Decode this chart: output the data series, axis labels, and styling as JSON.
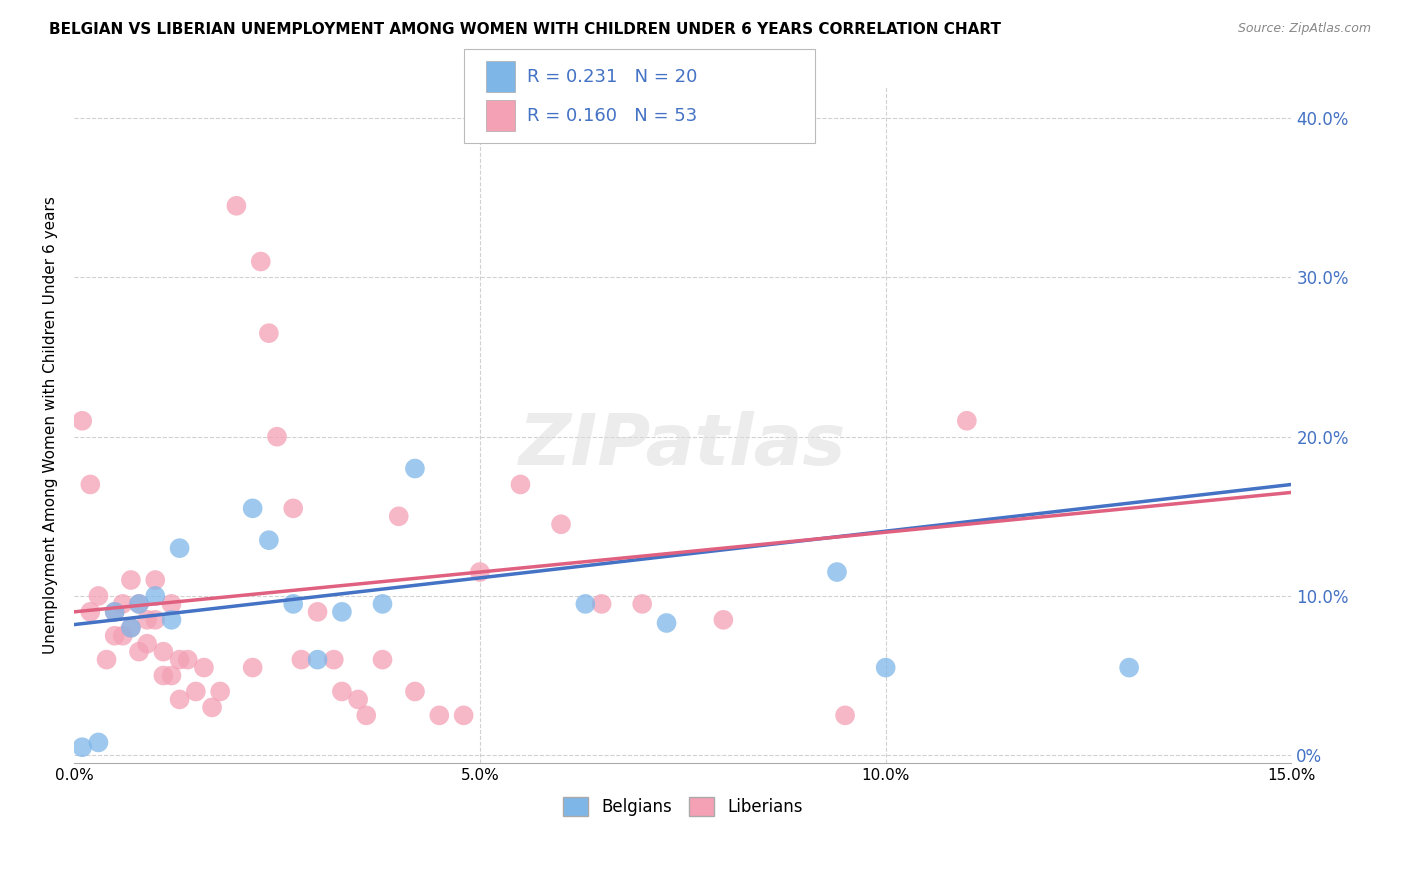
{
  "title": "BELGIAN VS LIBERIAN UNEMPLOYMENT AMONG WOMEN WITH CHILDREN UNDER 6 YEARS CORRELATION CHART",
  "source": "Source: ZipAtlas.com",
  "ylabel": "Unemployment Among Women with Children Under 6 years",
  "xlim": [
    0.0,
    0.15
  ],
  "ylim": [
    -0.005,
    0.42
  ],
  "xticks": [
    0.0,
    0.05,
    0.1,
    0.15
  ],
  "yticks": [
    0.0,
    0.1,
    0.2,
    0.3,
    0.4
  ],
  "ytick_labels_right": [
    "0%",
    "10.0%",
    "20.0%",
    "30.0%",
    "40.0%"
  ],
  "xtick_labels": [
    "0.0%",
    "5.0%",
    "10.0%",
    "15.0%"
  ],
  "belgian_R": "0.231",
  "belgian_N": "20",
  "liberian_R": "0.160",
  "liberian_N": "53",
  "belgian_color": "#7EB6E8",
  "liberian_color": "#F4A0B5",
  "belgian_line_color": "#4472C4",
  "liberian_line_color": "#E06080",
  "watermark": "ZIPatlas",
  "belgians_x": [
    0.001,
    0.003,
    0.005,
    0.007,
    0.008,
    0.01,
    0.012,
    0.013,
    0.022,
    0.024,
    0.027,
    0.03,
    0.033,
    0.038,
    0.042,
    0.063,
    0.073,
    0.094,
    0.1,
    0.13
  ],
  "belgians_y": [
    0.005,
    0.008,
    0.09,
    0.08,
    0.095,
    0.1,
    0.085,
    0.13,
    0.155,
    0.135,
    0.095,
    0.06,
    0.09,
    0.095,
    0.18,
    0.095,
    0.083,
    0.115,
    0.055,
    0.055
  ],
  "liberians_x": [
    0.001,
    0.002,
    0.002,
    0.003,
    0.004,
    0.005,
    0.005,
    0.006,
    0.006,
    0.007,
    0.007,
    0.008,
    0.008,
    0.009,
    0.009,
    0.01,
    0.01,
    0.011,
    0.011,
    0.012,
    0.012,
    0.013,
    0.013,
    0.014,
    0.015,
    0.016,
    0.017,
    0.018,
    0.02,
    0.022,
    0.023,
    0.024,
    0.025,
    0.027,
    0.028,
    0.03,
    0.032,
    0.033,
    0.035,
    0.036,
    0.038,
    0.04,
    0.042,
    0.045,
    0.048,
    0.05,
    0.055,
    0.06,
    0.065,
    0.07,
    0.08,
    0.095,
    0.11
  ],
  "liberians_y": [
    0.21,
    0.17,
    0.09,
    0.1,
    0.06,
    0.09,
    0.075,
    0.095,
    0.075,
    0.11,
    0.08,
    0.095,
    0.065,
    0.085,
    0.07,
    0.11,
    0.085,
    0.065,
    0.05,
    0.05,
    0.095,
    0.06,
    0.035,
    0.06,
    0.04,
    0.055,
    0.03,
    0.04,
    0.345,
    0.055,
    0.31,
    0.265,
    0.2,
    0.155,
    0.06,
    0.09,
    0.06,
    0.04,
    0.035,
    0.025,
    0.06,
    0.15,
    0.04,
    0.025,
    0.025,
    0.115,
    0.17,
    0.145,
    0.095,
    0.095,
    0.085,
    0.025,
    0.21
  ]
}
